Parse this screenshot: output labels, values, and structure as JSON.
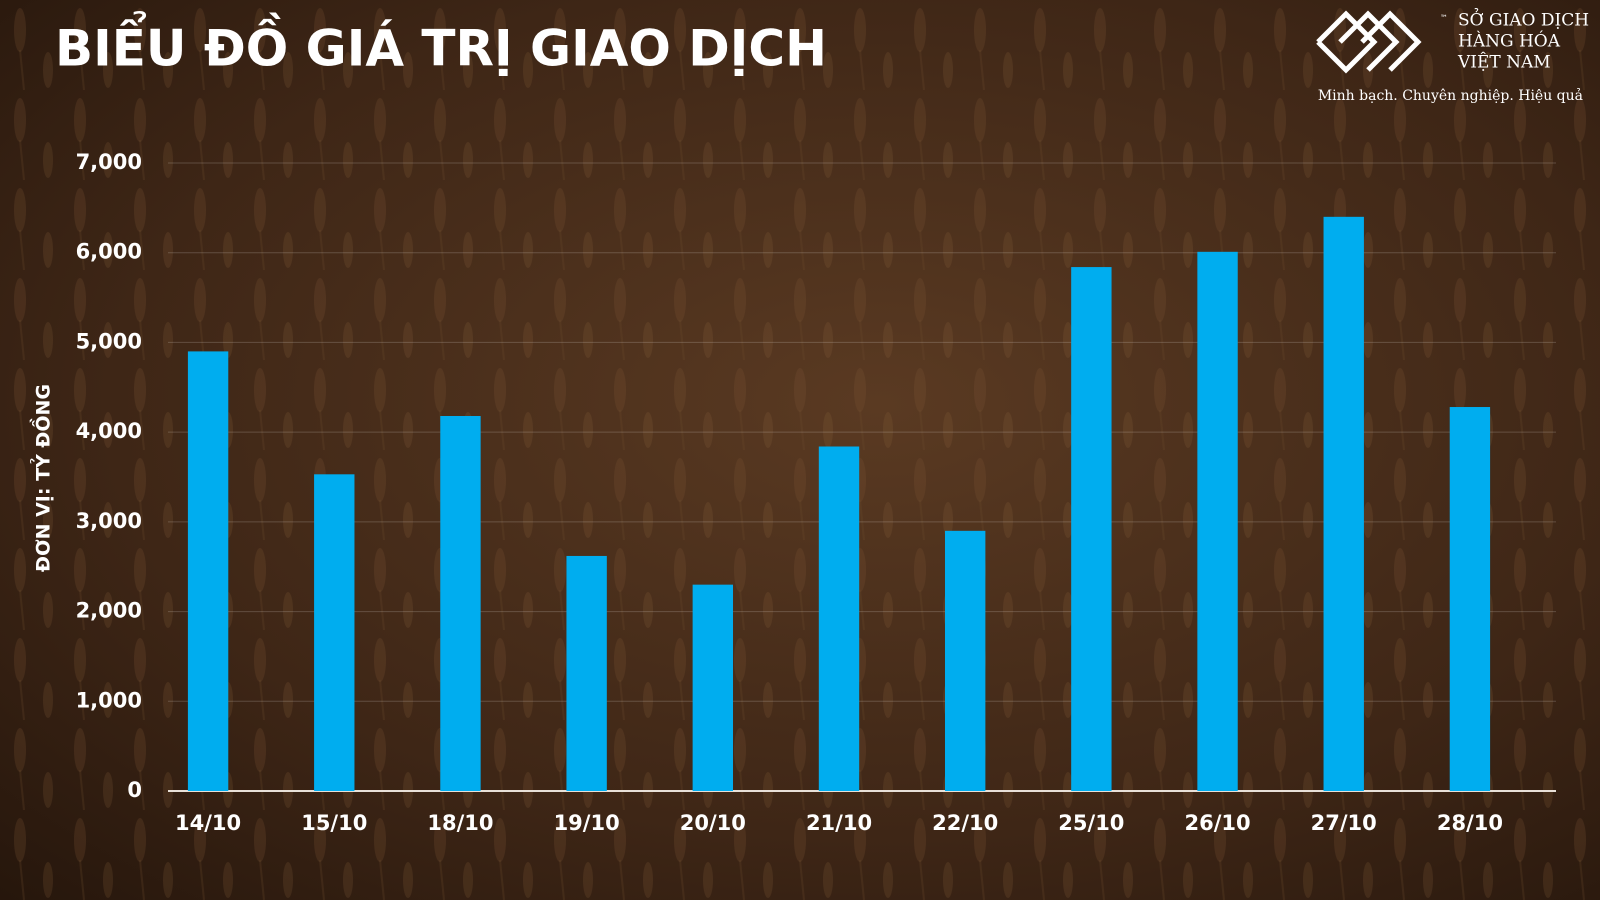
{
  "chart_data": {
    "type": "bar",
    "title": "BIỂU ĐỒ GIÁ TRỊ GIAO DỊCH",
    "y_label": "ĐƠN VỊ: TỶ ĐỒNG",
    "logo": {
      "lines": [
        "SỞ GIAO DỊCH",
        "HÀNG HÓA",
        "VIỆT NAM"
      ],
      "trademark": "™",
      "tagline": "Minh bạch. Chuyên nghiệp. Hiệu quả"
    },
    "categories": [
      "14/10",
      "15/10",
      "18/10",
      "19/10",
      "20/10",
      "21/10",
      "22/10",
      "25/10",
      "26/10",
      "27/10",
      "28/10"
    ],
    "values": [
      4900,
      3530,
      4180,
      2620,
      2300,
      3840,
      2900,
      5840,
      6010,
      6400,
      4280
    ],
    "color": "#00adef",
    "ylim": [
      0,
      7000
    ],
    "yticks": [
      0,
      {
        "value": 1000,
        "label": "1,000"
      },
      {
        "value": 2000,
        "label": "2,000"
      },
      {
        "value": 3000,
        "label": "3,000"
      },
      {
        "value": 4000,
        "label": "4,000"
      },
      {
        "value": 5000,
        "label": "5,000"
      },
      {
        "value": 6000,
        "label": "6,000"
      },
      {
        "value": 7000,
        "label": "7,000"
      }
    ],
    "grid": true
  }
}
